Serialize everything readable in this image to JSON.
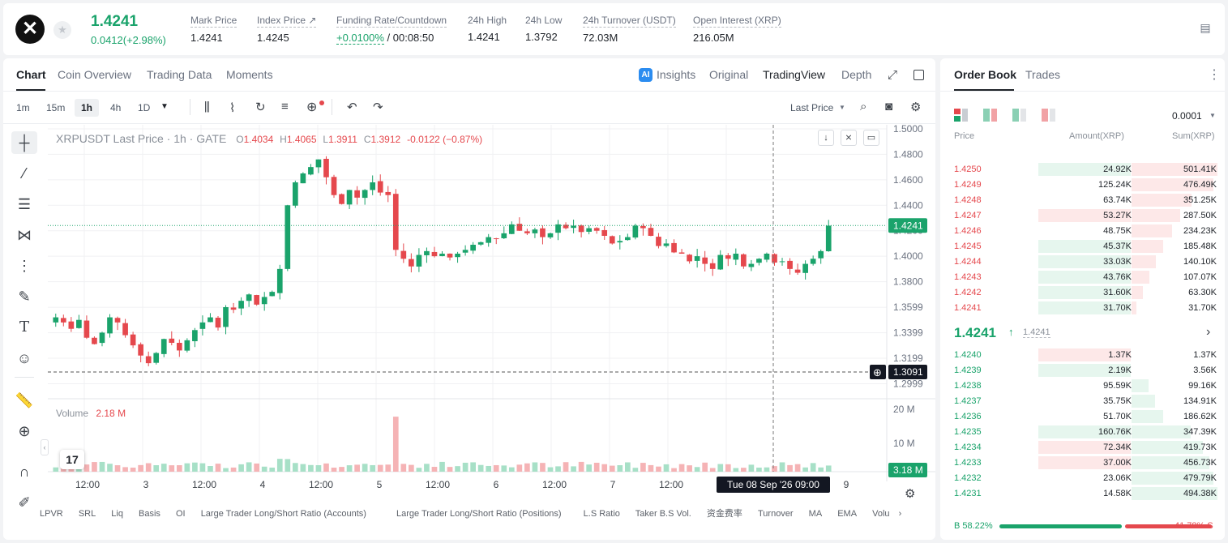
{
  "header": {
    "last_price": "1.4241",
    "change": "0.0412(+2.98%)",
    "stats": [
      {
        "label": "Mark Price",
        "value": "1.4241"
      },
      {
        "label": "Index Price ↗",
        "value": "1.4245"
      },
      {
        "label": "Funding Rate/Countdown",
        "value_green": "+0.0100%",
        "value": " / 00:08:50"
      },
      {
        "label": "24h High",
        "value": "1.4241"
      },
      {
        "label": "24h Low",
        "value": "1.3792"
      },
      {
        "label": "24h Turnover (USDT)",
        "value": "72.03M"
      },
      {
        "label": "Open Interest (XRP)",
        "value": "216.05M"
      }
    ]
  },
  "chart_tabs": [
    "Chart",
    "Coin Overview",
    "Trading Data",
    "Moments"
  ],
  "view_tabs": [
    "Insights",
    "Original",
    "TradingView",
    "Depth"
  ],
  "timeframes": [
    "1m",
    "15m",
    "1h",
    "4h",
    "1D"
  ],
  "price_type": "Last Price",
  "legend": {
    "symbol": "XRPUSDT Last Price · 1h · GATE",
    "o_label": "O",
    "o": "1.4034",
    "h_label": "H",
    "h": "1.4065",
    "l_label": "L",
    "l": "1.3911",
    "c_label": "C",
    "c": "1.3912",
    "chg": "-0.0122 (−0.87%)"
  },
  "volume_label": "Volume",
  "volume_value": "2.18 M",
  "price_axis": [
    "1.5000",
    "1.4800",
    "1.4600",
    "1.4400",
    "1.4200",
    "1.4000",
    "1.3800",
    "1.3599",
    "1.3399",
    "1.3199",
    "1.2999"
  ],
  "current_price_tag": "1.4241",
  "crosshair_price_tag": "1.3091",
  "volume_axis": [
    "20 M",
    "10 M"
  ],
  "volume_tag": "3.18 M",
  "time_axis": [
    "12:00",
    "3",
    "12:00",
    "4",
    "12:00",
    "5",
    "12:00",
    "6",
    "12:00",
    "7",
    "12:00",
    "9"
  ],
  "crosshair_time": "Tue 08 Sep '26   09:00",
  "indicators": [
    "LPVR",
    "SRL",
    "Liq",
    "Basis",
    "OI",
    "Large Trader Long/Short Ratio (Accounts)",
    "Large Trader Long/Short Ratio (Positions)",
    "L.S Ratio",
    "Taker B.S Vol.",
    "资金费率",
    "Turnover",
    "MA",
    "EMA",
    "Volu"
  ],
  "chart_data": {
    "type": "candlestick",
    "title": "XRPUSDT Last Price · 1h · GATE",
    "ylim": [
      1.29,
      1.5
    ],
    "ohlc_close_series": [
      1.352,
      1.348,
      1.343,
      1.35,
      1.336,
      1.331,
      1.34,
      1.352,
      1.348,
      1.338,
      1.33,
      1.322,
      1.316,
      1.324,
      1.335,
      1.332,
      1.326,
      1.334,
      1.342,
      1.348,
      1.352,
      1.344,
      1.36,
      1.358,
      1.365,
      1.37,
      1.362,
      1.368,
      1.372,
      1.39,
      1.44,
      1.458,
      1.465,
      1.47,
      1.476,
      1.462,
      1.448,
      1.441,
      1.452,
      1.446,
      1.452,
      1.458,
      1.45,
      1.448,
      1.405,
      1.398,
      1.392,
      1.401,
      1.404,
      1.4,
      1.402,
      1.399,
      1.402,
      1.405,
      1.409,
      1.411,
      1.415,
      1.414,
      1.418,
      1.425,
      1.42,
      1.418,
      1.421,
      1.415,
      1.418,
      1.425,
      1.422,
      1.424,
      1.419,
      1.422,
      1.42,
      1.416,
      1.41,
      1.412,
      1.415,
      1.424,
      1.422,
      1.416,
      1.408,
      1.41,
      1.403,
      1.402,
      1.396,
      1.4,
      1.394,
      1.39,
      1.401,
      1.398,
      1.402,
      1.392,
      1.394,
      1.398,
      1.402,
      1.395,
      1.396,
      1.39,
      1.387,
      1.394,
      1.398,
      1.404,
      1.424
    ],
    "volume_label": "Volume"
  },
  "orderbook": {
    "tabs": [
      "Order Book",
      "Trades"
    ],
    "precision": "0.0001",
    "headers": [
      "Price",
      "Amount(XRP)",
      "Sum(XRP)"
    ],
    "asks": [
      {
        "price": "1.4250",
        "amount": "24.92K",
        "sum": "501.41K",
        "amt_frac": 0.16,
        "sum_frac": 1.0
      },
      {
        "price": "1.4249",
        "amount": "125.24K",
        "sum": "476.49K",
        "amt_frac": 0.0,
        "sum_frac": 0.95
      },
      {
        "price": "1.4248",
        "amount": "63.74K",
        "sum": "351.25K",
        "amt_frac": 0.0,
        "sum_frac": 0.7
      },
      {
        "price": "1.4247",
        "amount": "53.27K",
        "sum": "287.50K",
        "amt_frac": 0.35,
        "sum_frac": 0.57
      },
      {
        "price": "1.4246",
        "amount": "48.75K",
        "sum": "234.23K",
        "amt_frac": 0.0,
        "sum_frac": 0.47
      },
      {
        "price": "1.4245",
        "amount": "45.37K",
        "sum": "185.48K",
        "amt_frac": 0.16,
        "sum_frac": 0.37
      },
      {
        "price": "1.4244",
        "amount": "33.03K",
        "sum": "140.10K",
        "amt_frac": 0.16,
        "sum_frac": 0.28
      },
      {
        "price": "1.4243",
        "amount": "43.76K",
        "sum": "107.07K",
        "amt_frac": 0.16,
        "sum_frac": 0.21
      },
      {
        "price": "1.4242",
        "amount": "31.60K",
        "sum": "63.30K",
        "amt_frac": 0.16,
        "sum_frac": 0.13
      },
      {
        "price": "1.4241",
        "amount": "31.70K",
        "sum": "31.70K",
        "amt_frac": 0.16,
        "sum_frac": 0.06
      }
    ],
    "mid_price": "1.4241",
    "mid_mark": "1.4241",
    "bids": [
      {
        "price": "1.4240",
        "amount": "1.37K",
        "sum": "1.37K",
        "amt_frac": 0.35,
        "sum_frac": 0.0,
        "amt_red": true
      },
      {
        "price": "1.4239",
        "amount": "2.19K",
        "sum": "3.56K",
        "amt_frac": 0.16,
        "sum_frac": 0.0
      },
      {
        "price": "1.4238",
        "amount": "95.59K",
        "sum": "99.16K",
        "amt_frac": 0.0,
        "sum_frac": 0.2
      },
      {
        "price": "1.4237",
        "amount": "35.75K",
        "sum": "134.91K",
        "amt_frac": 0.0,
        "sum_frac": 0.27
      },
      {
        "price": "1.4236",
        "amount": "51.70K",
        "sum": "186.62K",
        "amt_frac": 0.0,
        "sum_frac": 0.37
      },
      {
        "price": "1.4235",
        "amount": "160.76K",
        "sum": "347.39K",
        "amt_frac": 0.35,
        "sum_frac": 0.69
      },
      {
        "price": "1.4234",
        "amount": "72.34K",
        "sum": "419.73K",
        "amt_frac": 0.35,
        "sum_frac": 0.83,
        "amt_red": true
      },
      {
        "price": "1.4233",
        "amount": "37.00K",
        "sum": "456.73K",
        "amt_frac": 0.35,
        "sum_frac": 0.91,
        "amt_red": true
      },
      {
        "price": "1.4232",
        "amount": "23.06K",
        "sum": "479.79K",
        "amt_frac": 0.0,
        "sum_frac": 0.95
      },
      {
        "price": "1.4231",
        "amount": "14.58K",
        "sum": "494.38K",
        "amt_frac": 0.0,
        "sum_frac": 1.0
      }
    ],
    "buy_ratio": "B 58.22%",
    "sell_ratio": "41.78% S",
    "buy_fraction": 0.5822
  },
  "colors": {
    "up": "#1aa36b",
    "down": "#e5484d",
    "up_vol": "#a7e0c7",
    "down_vol": "#f5b3b5"
  }
}
